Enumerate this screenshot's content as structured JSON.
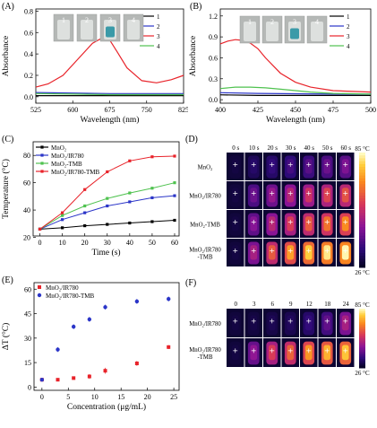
{
  "colors": {
    "black": "#000000",
    "blue": "#2b35c8",
    "red": "#e8232a",
    "green": "#4fc24f"
  },
  "chart_data": [
    {
      "panel": "(A)",
      "type": "line",
      "xlabel": "Wavelength (nm)",
      "ylabel": "Absorbance",
      "xlim": [
        525,
        825
      ],
      "ylim": [
        -0.06,
        0.82
      ],
      "xticks": [
        525,
        600,
        675,
        750,
        825
      ],
      "yticks": [
        0.0,
        0.2,
        0.4,
        0.6,
        0.8
      ],
      "ytick_labels": [
        "0.0",
        "0.2",
        "0.4",
        "0.6",
        "0.8"
      ],
      "legend_position": "top-right",
      "inset_labels": [
        "1",
        "2",
        "3",
        "4"
      ],
      "series": [
        {
          "name": "1",
          "color": "#000000",
          "x": [
            525,
            600,
            675,
            750,
            825
          ],
          "y": [
            0.01,
            0.01,
            0.01,
            0.01,
            0.01
          ]
        },
        {
          "name": "2",
          "color": "#2b35c8",
          "x": [
            525,
            600,
            675,
            750,
            825
          ],
          "y": [
            0.04,
            0.035,
            0.03,
            0.03,
            0.03
          ]
        },
        {
          "name": "3",
          "color": "#e8232a",
          "x": [
            525,
            550,
            580,
            610,
            640,
            660,
            675,
            690,
            710,
            740,
            770,
            800,
            825
          ],
          "y": [
            0.09,
            0.12,
            0.2,
            0.35,
            0.5,
            0.55,
            0.53,
            0.42,
            0.27,
            0.15,
            0.13,
            0.16,
            0.2
          ]
        },
        {
          "name": "4",
          "color": "#4fc24f",
          "x": [
            525,
            600,
            675,
            750,
            825
          ],
          "y": [
            0.03,
            0.025,
            0.02,
            0.02,
            0.02
          ]
        }
      ]
    },
    {
      "panel": "(B)",
      "type": "line",
      "xlabel": "Wavelength (nm)",
      "ylabel": "Absorbance",
      "xlim": [
        400,
        500
      ],
      "ylim": [
        -0.05,
        1.3
      ],
      "xticks": [
        400,
        425,
        450,
        475,
        500
      ],
      "yticks": [
        0.0,
        0.3,
        0.6,
        0.9,
        1.2
      ],
      "ytick_labels": [
        "0.0",
        "0.3",
        "0.6",
        "0.9",
        "1.2"
      ],
      "legend_position": "top-right",
      "inset_labels": [
        "1",
        "2",
        "3",
        "4"
      ],
      "series": [
        {
          "name": "1",
          "color": "#000000",
          "x": [
            400,
            425,
            450,
            475,
            500
          ],
          "y": [
            0.07,
            0.06,
            0.06,
            0.06,
            0.06
          ]
        },
        {
          "name": "2",
          "color": "#2b35c8",
          "x": [
            400,
            425,
            450,
            475,
            500
          ],
          "y": [
            0.1,
            0.09,
            0.085,
            0.08,
            0.08
          ]
        },
        {
          "name": "3",
          "color": "#e8232a",
          "x": [
            400,
            405,
            410,
            415,
            420,
            425,
            430,
            440,
            450,
            460,
            475,
            500
          ],
          "y": [
            0.8,
            0.84,
            0.86,
            0.85,
            0.81,
            0.73,
            0.6,
            0.38,
            0.25,
            0.18,
            0.13,
            0.11
          ]
        },
        {
          "name": "4",
          "color": "#4fc24f",
          "x": [
            400,
            410,
            420,
            430,
            440,
            450,
            460,
            475,
            500
          ],
          "y": [
            0.16,
            0.18,
            0.18,
            0.17,
            0.15,
            0.13,
            0.11,
            0.09,
            0.08
          ]
        }
      ]
    },
    {
      "panel": "(C)",
      "type": "line",
      "xlabel": "Time (s)",
      "ylabel": "Temperature (°C)",
      "xlim": [
        -3,
        62
      ],
      "ylim": [
        21,
        90
      ],
      "xticks": [
        0,
        10,
        20,
        30,
        40,
        50,
        60
      ],
      "yticks": [
        20,
        40,
        60,
        80
      ],
      "legend_position": "top-left",
      "series": [
        {
          "name": "MnO₂",
          "color": "#000000",
          "x": [
            0,
            10,
            20,
            30,
            40,
            50,
            60
          ],
          "y": [
            26,
            27,
            28.5,
            29.5,
            30.5,
            31.5,
            32.5
          ]
        },
        {
          "name": "MnO₂/IR780",
          "color": "#2b35c8",
          "x": [
            0,
            10,
            20,
            30,
            40,
            50,
            60
          ],
          "y": [
            26,
            33,
            38,
            43,
            46,
            49,
            50.5
          ]
        },
        {
          "name": "MnO₂-TMB",
          "color": "#4fc24f",
          "x": [
            0,
            10,
            20,
            30,
            40,
            50,
            60
          ],
          "y": [
            26,
            36,
            43,
            48.5,
            52.5,
            56,
            60
          ]
        },
        {
          "name": "MnO₂/IR780-TMB",
          "color": "#e8232a",
          "x": [
            0,
            10,
            20,
            30,
            40,
            50,
            60
          ],
          "y": [
            26,
            38,
            55,
            68,
            76,
            79,
            79.5
          ]
        }
      ]
    },
    {
      "panel": "(E)",
      "type": "scatter",
      "xlabel": "Concentration (μg/mL)",
      "ylabel": "ΔT (°C)",
      "xlim": [
        -1.5,
        26
      ],
      "ylim": [
        -2,
        64
      ],
      "xticks": [
        0,
        5,
        10,
        15,
        20,
        25
      ],
      "yticks": [
        0,
        15,
        30,
        45,
        60
      ],
      "legend_position": "top-left",
      "series": [
        {
          "name": "MnO₂/IR780",
          "color": "#e8232a",
          "marker": "square",
          "x": [
            0,
            3,
            6,
            9,
            12,
            18,
            24
          ],
          "y": [
            4.5,
            4.5,
            5.5,
            6.5,
            10,
            14.5,
            24.5
          ],
          "err": [
            1,
            0.8,
            1,
            1.5,
            1.8,
            1.5,
            1.2
          ]
        },
        {
          "name": "MnO₂/IR780-TMB",
          "color": "#2b35c8",
          "marker": "circle",
          "x": [
            0,
            3,
            6,
            9,
            12,
            18,
            24
          ],
          "y": [
            4.5,
            23,
            37,
            41.5,
            49,
            52.5,
            54
          ],
          "err": [
            1,
            1.5,
            1.5,
            1.5,
            1.5,
            1.5,
            1.5
          ]
        }
      ]
    }
  ],
  "panel_d": {
    "label": "(D)",
    "times": [
      "0 s",
      "10 s",
      "20 s",
      "30 s",
      "40 s",
      "50 s",
      "60 s"
    ],
    "rows": [
      "MnO₂",
      "MnO₂/IR780",
      "MnO₂-TMB",
      "MnO₂/IR780\n-TMB"
    ],
    "intensity": [
      [
        0.05,
        0.12,
        0.16,
        0.2,
        0.24,
        0.28,
        0.32
      ],
      [
        0.05,
        0.28,
        0.38,
        0.46,
        0.52,
        0.58,
        0.62
      ],
      [
        0.05,
        0.34,
        0.46,
        0.56,
        0.64,
        0.7,
        0.76
      ],
      [
        0.05,
        0.42,
        0.64,
        0.8,
        0.9,
        0.96,
        0.99
      ]
    ],
    "scale_max": "85 °C",
    "scale_min": "26 °C"
  },
  "panel_f": {
    "label": "(F)",
    "concentrations": [
      "0",
      "3",
      "6",
      "9",
      "12",
      "18",
      "24"
    ],
    "rows": [
      "MnO₂/IR780",
      "MnO₂/IR780\n-TMB"
    ],
    "intensity": [
      [
        0.05,
        0.06,
        0.08,
        0.1,
        0.16,
        0.26,
        0.42
      ],
      [
        0.05,
        0.36,
        0.56,
        0.66,
        0.78,
        0.84,
        0.88
      ]
    ],
    "scale_max": "85 °C",
    "scale_min": "26 °C"
  }
}
